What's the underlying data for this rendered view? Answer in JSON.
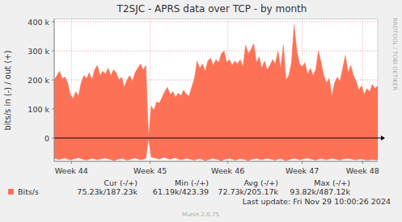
{
  "chart_data": {
    "type": "area",
    "title": "T2SJC - APRS data over TCP - by month",
    "y_label": "bits/s in (-) / out (+)",
    "x": [
      0,
      0.25,
      0.5,
      0.75,
      1,
      1.25,
      1.5,
      1.75,
      2,
      2.25,
      2.5,
      2.75,
      3,
      3.25,
      3.5,
      3.75,
      4,
      4.25,
      4.5,
      4.75,
      5,
      5.25,
      5.5,
      5.75,
      6,
      6.25,
      6.5,
      6.75,
      7,
      7.25,
      7.5,
      7.75,
      8,
      8.25,
      8.5,
      8.75,
      9,
      9.25,
      9.5,
      9.75,
      10,
      10.25,
      10.5,
      10.75,
      11,
      11.25,
      11.5,
      11.75,
      12,
      12.25,
      12.5,
      12.75,
      13,
      13.25,
      13.5,
      13.75,
      14,
      14.25,
      14.5,
      14.75,
      15,
      15.25,
      15.5,
      15.75,
      16,
      16.25,
      16.5,
      16.75,
      17,
      17.25,
      17.5,
      17.75,
      18,
      18.25,
      18.5,
      18.75,
      19,
      19.25,
      19.5,
      19.75,
      20,
      20.25,
      20.5,
      20.75,
      21,
      21.25,
      21.5,
      21.75,
      22,
      22.25,
      22.5,
      22.75,
      23,
      23.25,
      23.5,
      23.75,
      24,
      24.25,
      24.5,
      24.75,
      25,
      25.25,
      25.5,
      25.75,
      26,
      26.25,
      26.5,
      26.75,
      27,
      27.25,
      27.5,
      27.75,
      28,
      28.25,
      28.5,
      28.75,
      29,
      29.25,
      29.5,
      29.75,
      30
    ],
    "series": [
      {
        "name": "Bits/s",
        "color": "#fd7257",
        "values": [
          200000,
          215000,
          230000,
          205000,
          210000,
          190000,
          150000,
          135000,
          160000,
          145000,
          190000,
          215000,
          205000,
          225000,
          200000,
          235000,
          250000,
          215000,
          230000,
          220000,
          240000,
          215000,
          235000,
          225000,
          200000,
          210000,
          175000,
          200000,
          215000,
          195000,
          225000,
          240000,
          255000,
          235000,
          250000,
          5000,
          110000,
          95000,
          125000,
          120000,
          140000,
          160000,
          175000,
          150000,
          160000,
          140000,
          155000,
          145000,
          165000,
          150000,
          145000,
          175000,
          205000,
          265000,
          240000,
          255000,
          230000,
          265000,
          275000,
          250000,
          270000,
          260000,
          290000,
          300000,
          260000,
          270000,
          250000,
          265000,
          255000,
          270000,
          245000,
          320000,
          290000,
          305000,
          325000,
          260000,
          280000,
          240000,
          265000,
          235000,
          250000,
          270000,
          255000,
          300000,
          240000,
          320000,
          200000,
          215000,
          260000,
          390000,
          300000,
          255000,
          245000,
          260000,
          220000,
          240000,
          215000,
          235000,
          300000,
          260000,
          215000,
          190000,
          205000,
          145000,
          190000,
          210000,
          195000,
          240000,
          285000,
          225000,
          250000,
          215000,
          195000,
          165000,
          180000,
          150000,
          170000,
          160000,
          185000,
          170000,
          180000
        ],
        "in_values": [
          -70000,
          -72000,
          -74000,
          -71000,
          -69000,
          -73000,
          -75000,
          -72000,
          -70000,
          -68000,
          -71000,
          -74000,
          -76000,
          -73000,
          -70000,
          -72000,
          -75000,
          -73000,
          -71000,
          -69000,
          -72000,
          -74000,
          -77000,
          -75000,
          -72000,
          -70000,
          -73000,
          -76000,
          -74000,
          -71000,
          -69000,
          -72000,
          -75000,
          -73000,
          -70000,
          -2000,
          -66000,
          -68000,
          -70000,
          -72000,
          -69000,
          -67000,
          -71000,
          -73000,
          -70000,
          -68000,
          -72000,
          -75000,
          -73000,
          -70000,
          -72000,
          -74000,
          -76000,
          -73000,
          -71000,
          -74000,
          -77000,
          -75000,
          -72000,
          -70000,
          -73000,
          -75000,
          -78000,
          -74000,
          -72000,
          -70000,
          -73000,
          -76000,
          -74000,
          -71000,
          -73000,
          -75000,
          -77000,
          -74000,
          -72000,
          -70000,
          -73000,
          -75000,
          -72000,
          -70000,
          -72000,
          -74000,
          -76000,
          -73000,
          -71000,
          -74000,
          -77000,
          -75000,
          -72000,
          -70000,
          -72000,
          -75000,
          -73000,
          -71000,
          -69000,
          -72000,
          -74000,
          -76000,
          -73000,
          -71000,
          -73000,
          -75000,
          -72000,
          -70000,
          -72000,
          -74000,
          -76000,
          -73000,
          -71000,
          -70000,
          -72000,
          -74000,
          -75000,
          -73000,
          -72000,
          -74000,
          -76000,
          -75000,
          -74000,
          -75000,
          -75000
        ]
      }
    ],
    "xlim": [
      0,
      30
    ],
    "xticks": [
      {
        "value": 1.6,
        "label": "Week 44"
      },
      {
        "value": 8.9,
        "label": "Week 45"
      },
      {
        "value": 16.1,
        "label": "Week 46"
      },
      {
        "value": 23.0,
        "label": "Week 47"
      },
      {
        "value": 28.6,
        "label": "Week 48"
      }
    ],
    "ylim": [
      -80000,
      410000
    ],
    "yticks": [
      0,
      {
        "value": 100000,
        "label": "100 k"
      },
      {
        "value": 200000,
        "label": "200 k"
      },
      {
        "value": 300000,
        "label": "300 k"
      },
      {
        "value": 400000,
        "label": "400 k"
      }
    ],
    "grid": true,
    "stats": {
      "headers": [
        "Cur (-/+)",
        "Min (-/+)",
        "Avg (-/+)",
        "Max (-/+)"
      ],
      "values": [
        "75.23k/187.23k",
        "61.19k/423.39",
        "72.73k/205.17k",
        "93.82k/487.12k"
      ]
    },
    "footer": "Last update: Fri Nov 29 10:00:26 2024",
    "credit": "Munin 2.0.75",
    "watermark": "RRDTOOL / TOBI OETIKER"
  }
}
